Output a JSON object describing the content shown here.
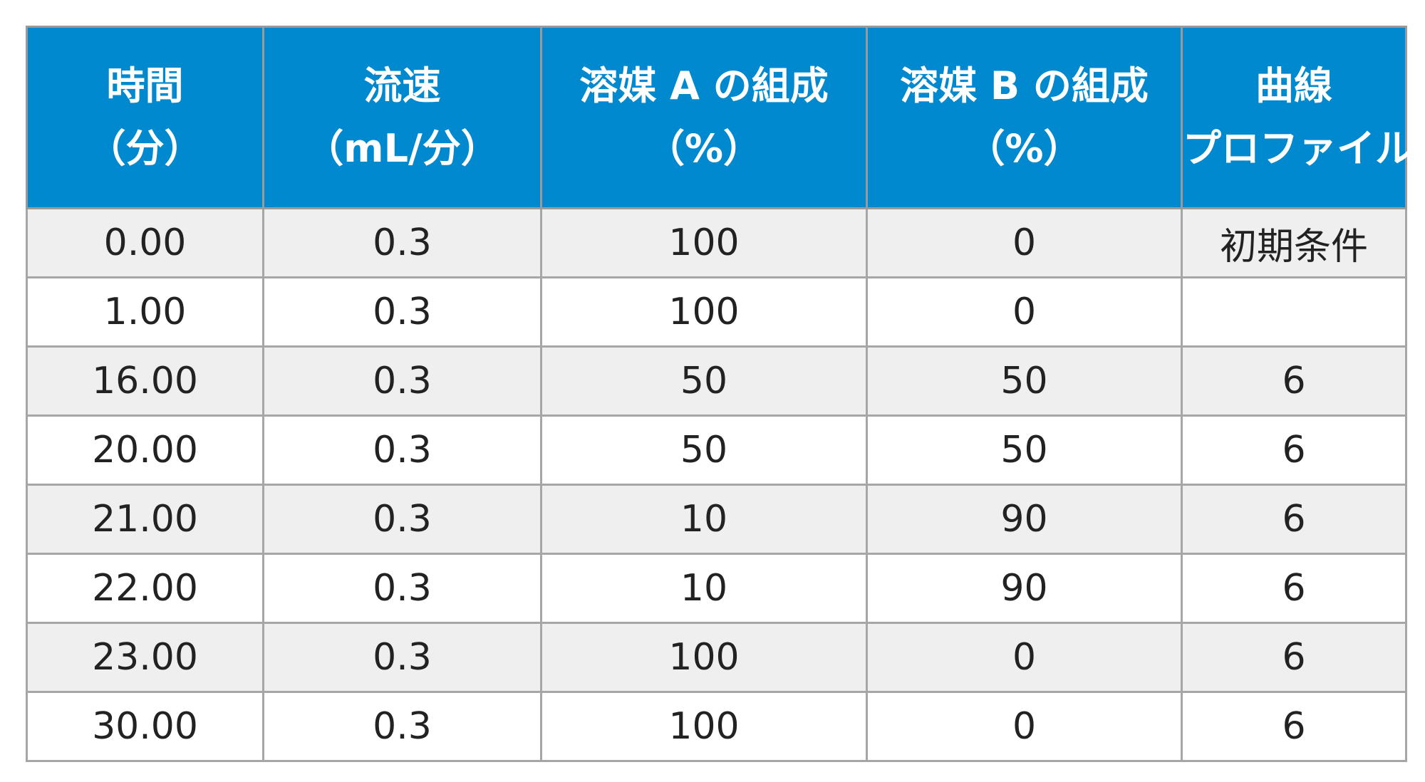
{
  "table": {
    "headers": [
      {
        "line1": "時間",
        "line2": "（分）"
      },
      {
        "line1": "流速",
        "line2": "（mL/分）"
      },
      {
        "line1": "溶媒 A の組成",
        "line2": "（%）"
      },
      {
        "line1": "溶媒 B の組成",
        "line2": "（%）"
      },
      {
        "line1": "曲線",
        "line2": "プロファイル"
      }
    ],
    "rows": [
      [
        "0.00",
        "0.3",
        "100",
        "0",
        "初期条件"
      ],
      [
        "1.00",
        "0.3",
        "100",
        "0",
        ""
      ],
      [
        "16.00",
        "0.3",
        "50",
        "50",
        "6"
      ],
      [
        "20.00",
        "0.3",
        "50",
        "50",
        "6"
      ],
      [
        "21.00",
        "0.3",
        "10",
        "90",
        "6"
      ],
      [
        "22.00",
        "0.3",
        "10",
        "90",
        "6"
      ],
      [
        "23.00",
        "0.3",
        "100",
        "0",
        "6"
      ],
      [
        "30.00",
        "0.3",
        "100",
        "0",
        "6"
      ]
    ]
  },
  "colors": {
    "header_background": "#0089cf",
    "header_text": "#ffffff",
    "stripe_background": "#efefef",
    "border": "#a6a6a6"
  }
}
